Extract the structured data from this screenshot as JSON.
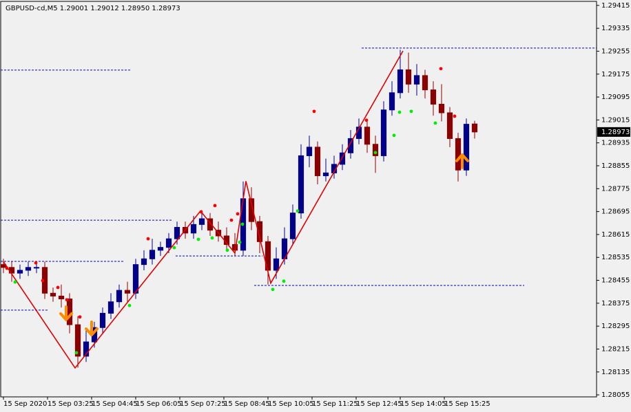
{
  "chart_data": {
    "type": "candlestick",
    "title": "GBPUSD-cd,M5  1.29001 1.29012 1.28950 1.28973",
    "xlim": [
      -1,
      215.25
    ],
    "ylim": [
      1.28048,
      1.29429
    ],
    "xticks": [
      {
        "value": 0,
        "label": "15 Sep 2020"
      },
      {
        "value": 16,
        "label": "15 Sep 03:25"
      },
      {
        "value": 32,
        "label": "15 Sep 04:45"
      },
      {
        "value": 48,
        "label": "15 Sep 06:05"
      },
      {
        "value": 64,
        "label": "15 Sep 07:25"
      },
      {
        "value": 80,
        "label": "15 Sep 08:45"
      },
      {
        "value": 96,
        "label": "15 Sep 10:05"
      },
      {
        "value": 112,
        "label": "15 Sep 11:25"
      },
      {
        "value": 128,
        "label": "15 Sep 12:45"
      },
      {
        "value": 144,
        "label": "15 Sep 14:05"
      },
      {
        "value": 160,
        "label": "15 Sep 15:25"
      }
    ],
    "yticks": [
      1.29415,
      1.29335,
      1.29255,
      1.29175,
      1.29095,
      1.29015,
      1.28935,
      1.28855,
      1.28775,
      1.28695,
      1.28615,
      1.28535,
      1.28455,
      1.28375,
      1.28295,
      1.28215,
      1.28135,
      1.28055
    ],
    "last_price": 1.28973,
    "bull_color": "#00008b",
    "bear_color": "#8b0000",
    "candles": {
      "x": [
        0,
        3,
        6,
        9,
        12,
        15,
        18,
        21,
        24,
        27,
        30,
        33,
        36,
        39,
        42,
        45,
        48,
        51,
        54,
        57,
        60,
        63,
        66,
        69,
        72,
        75,
        78,
        81,
        84,
        87,
        90,
        93,
        96,
        99,
        102,
        105,
        108,
        111,
        114,
        117,
        120,
        123,
        126,
        129,
        132,
        135,
        138,
        141,
        144,
        147,
        150,
        153,
        156,
        159,
        162,
        165,
        168,
        171
      ],
      "open": [
        1.2851,
        1.285,
        1.2848,
        1.2849,
        1.285,
        1.285,
        1.2841,
        1.284,
        1.2839,
        1.283,
        1.2819,
        1.2824,
        1.2829,
        1.2834,
        1.2838,
        1.2842,
        1.2841,
        1.2851,
        1.2853,
        1.2856,
        1.2857,
        1.286,
        1.2864,
        1.2862,
        1.2865,
        1.2867,
        1.2863,
        1.2861,
        1.2858,
        1.2856,
        1.2874,
        1.2866,
        1.2859,
        1.2849,
        1.2853,
        1.286,
        1.2869,
        1.2889,
        1.2892,
        1.2882,
        1.2883,
        1.2886,
        1.289,
        1.2895,
        1.2899,
        1.2893,
        1.2889,
        1.2905,
        1.2911,
        1.2919,
        1.2914,
        1.2917,
        1.2912,
        1.2907,
        1.2904,
        1.2895,
        1.2884,
        1.29001
      ],
      "high": [
        1.2853,
        1.2852,
        1.2851,
        1.2852,
        1.2852,
        1.2852,
        1.2843,
        1.2844,
        1.2841,
        1.2833,
        1.2829,
        1.2831,
        1.2836,
        1.2841,
        1.2844,
        1.2845,
        1.2853,
        1.2856,
        1.286,
        1.2859,
        1.2862,
        1.2866,
        1.2866,
        1.2868,
        1.287,
        1.2869,
        1.2866,
        1.2864,
        1.2862,
        1.288,
        1.2878,
        1.2868,
        1.2861,
        1.2857,
        1.2864,
        1.2872,
        1.2893,
        1.2896,
        1.2894,
        1.2888,
        1.2889,
        1.2893,
        1.2898,
        1.2902,
        1.2901,
        1.2896,
        1.2908,
        1.2915,
        1.2926,
        1.2925,
        1.2921,
        1.2919,
        1.2915,
        1.2914,
        1.2906,
        1.2897,
        1.2902,
        1.29012
      ],
      "low": [
        1.2848,
        1.2845,
        1.2846,
        1.2847,
        1.2848,
        1.2839,
        1.2838,
        1.2836,
        1.2827,
        1.2815,
        1.2817,
        1.2822,
        1.2827,
        1.2832,
        1.2836,
        1.2838,
        1.2839,
        1.2849,
        1.2851,
        1.2854,
        1.2855,
        1.2858,
        1.286,
        1.286,
        1.2863,
        1.2861,
        1.2859,
        1.2856,
        1.2854,
        1.2854,
        1.2863,
        1.2855,
        1.2844,
        1.2846,
        1.2851,
        1.2858,
        1.2867,
        1.2885,
        1.2879,
        1.288,
        1.2881,
        1.2884,
        1.2888,
        1.2893,
        1.289,
        1.2883,
        1.2887,
        1.2903,
        1.2909,
        1.2911,
        1.291,
        1.2909,
        1.2903,
        1.2901,
        1.2892,
        1.288,
        1.2882,
        1.2895
      ],
      "close": [
        1.285,
        1.2848,
        1.2849,
        1.285,
        1.285,
        1.2841,
        1.284,
        1.2839,
        1.283,
        1.2819,
        1.2824,
        1.2829,
        1.2834,
        1.2838,
        1.2842,
        1.2841,
        1.2851,
        1.2853,
        1.2856,
        1.2857,
        1.286,
        1.2864,
        1.2862,
        1.2865,
        1.2867,
        1.2863,
        1.2861,
        1.2858,
        1.2856,
        1.2874,
        1.2866,
        1.2859,
        1.2849,
        1.2853,
        1.286,
        1.2869,
        1.2889,
        1.2892,
        1.2882,
        1.2883,
        1.2886,
        1.289,
        1.2895,
        1.2899,
        1.2893,
        1.2889,
        1.2905,
        1.2911,
        1.2919,
        1.2914,
        1.2917,
        1.2912,
        1.2907,
        1.2904,
        1.2895,
        1.2884,
        1.29,
        1.28973
      ]
    },
    "zigzag": {
      "color": "#e00000",
      "x": [
        0,
        26,
        71.5,
        84,
        88,
        97,
        145
      ],
      "values": [
        1.2852,
        1.28149,
        1.28697,
        1.2855,
        1.28801,
        1.28445,
        1.29256
      ]
    },
    "levels": {
      "color": "#0000cd",
      "items": [
        {
          "value": 1.29189,
          "x": [
            -1,
            46
          ]
        },
        {
          "value": 1.29266,
          "x": [
            130,
            215.25
          ]
        },
        {
          "value": 1.28665,
          "x": [
            -1,
            61
          ]
        },
        {
          "value": 1.28521,
          "x": [
            -1,
            44
          ]
        },
        {
          "value": 1.2854,
          "x": [
            62.5,
            94
          ]
        },
        {
          "value": 1.28437,
          "x": [
            91,
            189
          ]
        },
        {
          "value": 1.28351,
          "x": [
            -1,
            16
          ]
        }
      ]
    },
    "fractals_up": {
      "color": "#ff0000",
      "x": [
        1.25,
        11.75,
        14.25,
        19.75,
        23,
        27.75,
        52.5,
        71.75,
        76.75,
        82.75,
        85,
        112.75,
        131.75,
        158.75,
        163.75
      ],
      "values": [
        1.28497,
        1.28516,
        1.28454,
        1.2843,
        1.28387,
        1.28327,
        1.286,
        1.28694,
        1.28716,
        1.28665,
        1.28687,
        1.29045,
        1.29014,
        1.29194,
        1.29028
      ]
    },
    "fractals_down": {
      "color": "#00ee00",
      "x": [
        4.25,
        26.5,
        45.75,
        62,
        70.75,
        75.75,
        81.25,
        85.75,
        86.75,
        97.75,
        101.75,
        106.75,
        135,
        141.75,
        143.75,
        148,
        156.75
      ],
      "values": [
        1.28449,
        1.28202,
        1.28367,
        1.28569,
        1.28598,
        1.28603,
        1.2856,
        1.28588,
        1.28651,
        1.28423,
        1.28452,
        1.28697,
        1.28901,
        1.28961,
        1.29042,
        1.29045,
        1.29004
      ]
    },
    "arrows": {
      "color": "#ff8c00",
      "x": [
        22.75,
        32,
        166.5
      ],
      "values": [
        1.28334,
        1.28281,
        1.28877
      ],
      "directions": [
        "down",
        "down",
        "up"
      ]
    }
  }
}
